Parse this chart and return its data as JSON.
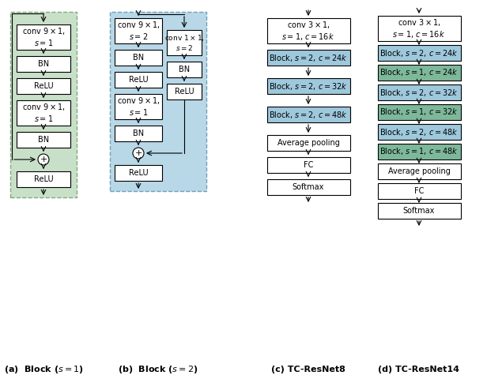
{
  "fig_width": 6.16,
  "fig_height": 4.8,
  "dpi": 100,
  "bg_color": "#ffffff",
  "green_bg": "#c8e0c8",
  "blue_bg": "#b8d8e8",
  "block_blue": "#9ec8dc",
  "block_green": "#7db89a",
  "caption_a": "(a)  Block ($s = 1$)",
  "caption_b": "(b)  Block ($s = 2$)",
  "caption_c": "(c) TC-ResNet8",
  "caption_d": "(d) TC-ResNet14"
}
